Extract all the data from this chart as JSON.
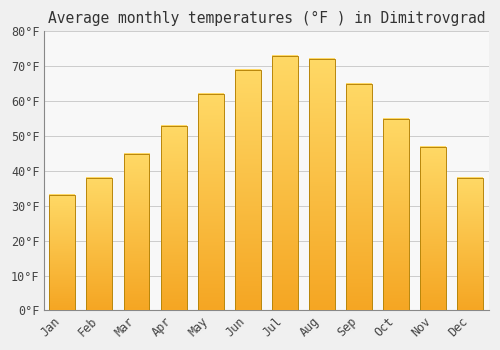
{
  "title": "Average monthly temperatures (°F ) in Dimitrovgrad",
  "months": [
    "Jan",
    "Feb",
    "Mar",
    "Apr",
    "May",
    "Jun",
    "Jul",
    "Aug",
    "Sep",
    "Oct",
    "Nov",
    "Dec"
  ],
  "values": [
    33,
    38,
    45,
    53,
    62,
    69,
    73,
    72,
    65,
    55,
    47,
    38
  ],
  "bar_color_bottom": "#F5A623",
  "bar_color_top": "#FFD966",
  "bar_edge_color": "#B8860B",
  "ylim": [
    0,
    80
  ],
  "ytick_step": 10,
  "background_color": "#F0F0F0",
  "plot_bg_color": "#F8F8F8",
  "grid_color": "#CCCCCC",
  "title_fontsize": 10.5,
  "tick_fontsize": 8.5,
  "xlabel_rotation": 45,
  "bar_width": 0.7
}
